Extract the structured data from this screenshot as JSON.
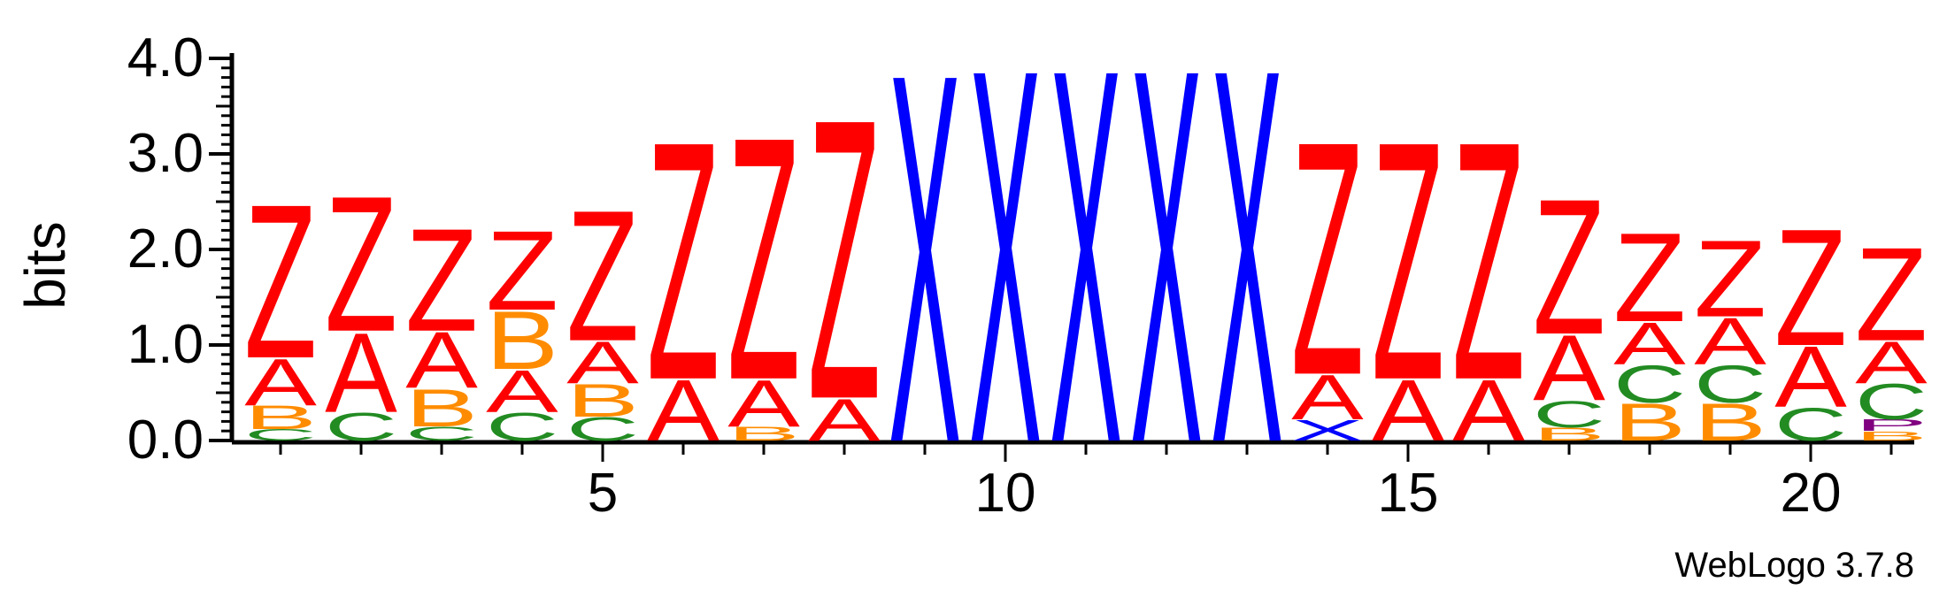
{
  "chart_data": {
    "type": "sequence_logo",
    "ylabel": "bits",
    "ylim": [
      0,
      4.0
    ],
    "y_ticks": [
      "0.0",
      "1.0",
      "2.0",
      "3.0",
      "4.0"
    ],
    "x_ticks": [
      "5",
      "10",
      "15",
      "20"
    ],
    "credit": "WebLogo 3.7.8",
    "colors": {
      "Z": "#ff0000",
      "A": "#ff0000",
      "X": "#0000ff",
      "B": "#ff8c00",
      "C": "#228b22",
      "P": "#800080"
    },
    "positions": [
      {
        "pos": 1,
        "stack": [
          [
            "C",
            0.12
          ],
          [
            "B",
            0.25
          ],
          [
            "A",
            0.5
          ],
          [
            "Z",
            1.65
          ]
        ]
      },
      {
        "pos": 2,
        "stack": [
          [
            "C",
            0.3
          ],
          [
            "A",
            0.85
          ],
          [
            "Z",
            1.45
          ]
        ]
      },
      {
        "pos": 3,
        "stack": [
          [
            "C",
            0.15
          ],
          [
            "B",
            0.4
          ],
          [
            "A",
            0.6
          ],
          [
            "Z",
            1.1
          ]
        ]
      },
      {
        "pos": 4,
        "stack": [
          [
            "C",
            0.3
          ],
          [
            "A",
            0.45
          ],
          [
            "B",
            0.62
          ],
          [
            "Z",
            0.85
          ]
        ]
      },
      {
        "pos": 5,
        "stack": [
          [
            "C",
            0.25
          ],
          [
            "B",
            0.35
          ],
          [
            "A",
            0.45
          ],
          [
            "Z",
            1.4
          ]
        ]
      },
      {
        "pos": 6,
        "stack": [
          [
            "A",
            0.65
          ],
          [
            "Z",
            2.55
          ]
        ]
      },
      {
        "pos": 7,
        "stack": [
          [
            "B",
            0.15
          ],
          [
            "A",
            0.5
          ],
          [
            "Z",
            2.6
          ]
        ]
      },
      {
        "pos": 8,
        "stack": [
          [
            "A",
            0.45
          ],
          [
            "Z",
            3.0
          ]
        ]
      },
      {
        "pos": 9,
        "stack": [
          [
            "X",
            3.95
          ]
        ]
      },
      {
        "pos": 10,
        "stack": [
          [
            "X",
            4.0
          ]
        ]
      },
      {
        "pos": 11,
        "stack": [
          [
            "X",
            4.0
          ]
        ]
      },
      {
        "pos": 12,
        "stack": [
          [
            "X",
            4.0
          ]
        ]
      },
      {
        "pos": 13,
        "stack": [
          [
            "X",
            4.0
          ]
        ]
      },
      {
        "pos": 14,
        "stack": [
          [
            "X",
            0.22
          ],
          [
            "A",
            0.48
          ],
          [
            "Z",
            2.5
          ]
        ]
      },
      {
        "pos": 15,
        "stack": [
          [
            "A",
            0.65
          ],
          [
            "Z",
            2.55
          ]
        ]
      },
      {
        "pos": 16,
        "stack": [
          [
            "A",
            0.65
          ],
          [
            "Z",
            2.55
          ]
        ]
      },
      {
        "pos": 17,
        "stack": [
          [
            "B",
            0.14
          ],
          [
            "C",
            0.28
          ],
          [
            "A",
            0.7
          ],
          [
            "Z",
            1.45
          ]
        ]
      },
      {
        "pos": 18,
        "stack": [
          [
            "B",
            0.4
          ],
          [
            "C",
            0.4
          ],
          [
            "A",
            0.45
          ],
          [
            "Z",
            0.95
          ]
        ]
      },
      {
        "pos": 19,
        "stack": [
          [
            "B",
            0.4
          ],
          [
            "C",
            0.4
          ],
          [
            "A",
            0.5
          ],
          [
            "Z",
            0.82
          ]
        ]
      },
      {
        "pos": 20,
        "stack": [
          [
            "C",
            0.35
          ],
          [
            "A",
            0.65
          ],
          [
            "Z",
            1.25
          ]
        ]
      },
      {
        "pos": 21,
        "stack": [
          [
            "B",
            0.1
          ],
          [
            "P",
            0.12
          ],
          [
            "C",
            0.38
          ],
          [
            "A",
            0.45
          ],
          [
            "Z",
            1.0
          ]
        ]
      }
    ]
  }
}
